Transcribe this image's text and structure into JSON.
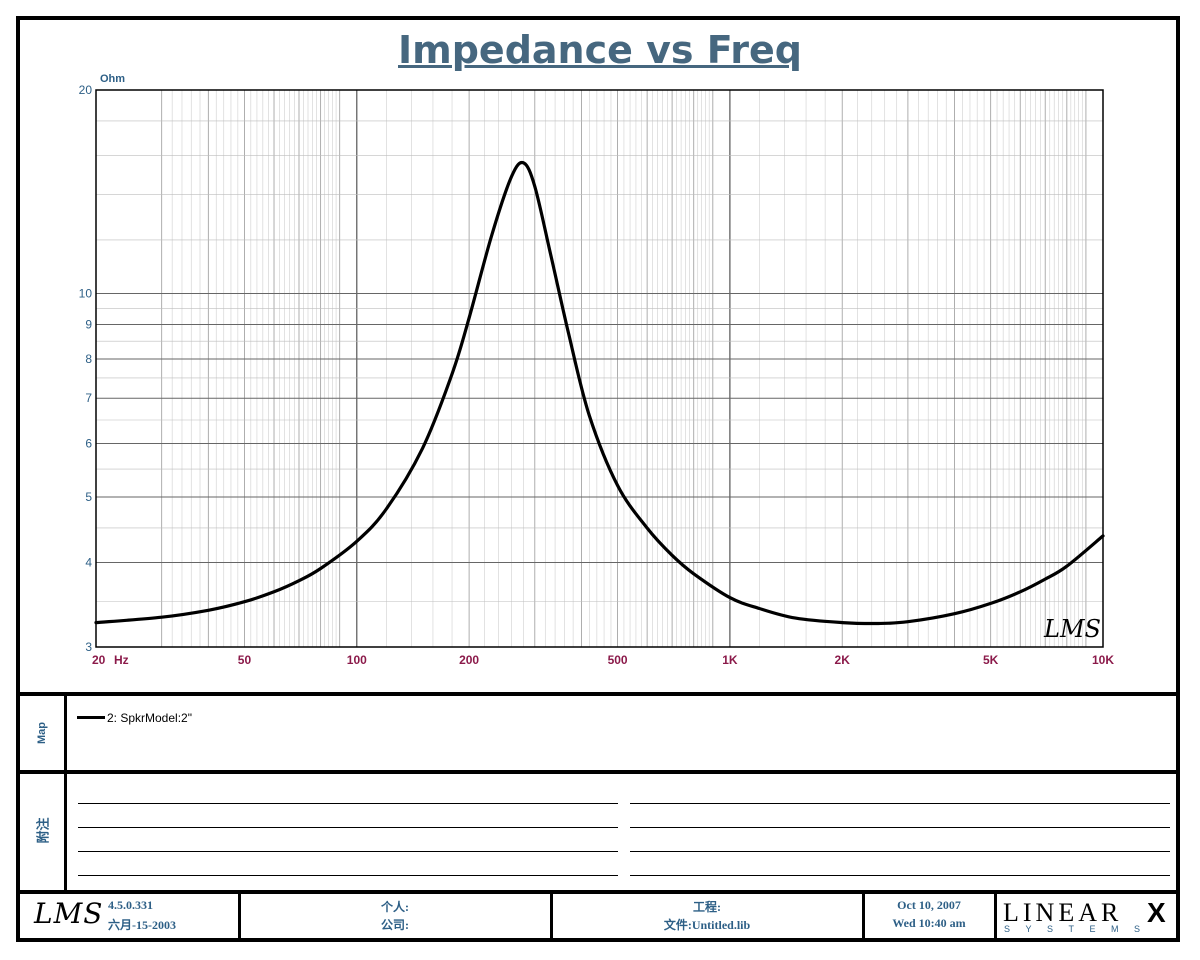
{
  "chart_data": {
    "type": "line",
    "title": "Impedance vs Freq",
    "ylabel": "Ohm",
    "xlabel": "Hz",
    "x_scale": "log",
    "y_scale": "log",
    "xlim": [
      20,
      10000
    ],
    "ylim": [
      3,
      20
    ],
    "grid": true,
    "x_ticks": [
      {
        "v": 20,
        "label": "20"
      },
      {
        "v": 50,
        "label": "50"
      },
      {
        "v": 100,
        "label": "100"
      },
      {
        "v": 200,
        "label": "200"
      },
      {
        "v": 500,
        "label": "500"
      },
      {
        "v": 1000,
        "label": "1K"
      },
      {
        "v": 2000,
        "label": "2K"
      },
      {
        "v": 5000,
        "label": "5K"
      },
      {
        "v": 10000,
        "label": "10K"
      }
    ],
    "y_ticks": [
      3,
      4,
      5,
      6,
      7,
      8,
      9,
      10,
      20
    ],
    "series": [
      {
        "name": "2: SpkrModel:2\"",
        "x": [
          20,
          30,
          40,
          50,
          60,
          70,
          80,
          100,
          120,
          150,
          180,
          200,
          230,
          260,
          280,
          300,
          330,
          370,
          420,
          500,
          600,
          700,
          800,
          1000,
          1200,
          1500,
          2000,
          2500,
          3000,
          4000,
          5000,
          6000,
          7000,
          8000,
          10000
        ],
        "y": [
          3.26,
          3.32,
          3.4,
          3.5,
          3.62,
          3.76,
          3.92,
          4.3,
          4.8,
          5.9,
          7.6,
          9.2,
          12.2,
          14.9,
          15.6,
          14.4,
          11.5,
          8.7,
          6.6,
          5.2,
          4.5,
          4.1,
          3.85,
          3.55,
          3.42,
          3.31,
          3.26,
          3.25,
          3.27,
          3.36,
          3.48,
          3.62,
          3.78,
          3.95,
          4.38
        ]
      }
    ],
    "watermark": "LMS"
  },
  "legend": {
    "section_label": "Map",
    "entry": "2: SpkrModel:2\""
  },
  "notes": {
    "section_label": "附注"
  },
  "footer": {
    "logo": "LMS",
    "version": "4.5.0.331",
    "build_date": "六月-15-2003",
    "person_label": "个人:",
    "company_label": "公司:",
    "project_label": "工程:",
    "file_label": "文件:Untitled.lib",
    "date": "Oct 10, 2007",
    "time": "Wed 10:40 am",
    "brand": "LINEAR",
    "brand_x": "X",
    "brand_sub": "SYSTEMS"
  },
  "colors": {
    "title": "#46677f",
    "axis_label": "#2d5f86",
    "x_tick_label": "#8b1a4a",
    "grid": "#9a9a9a",
    "curve": "#000000"
  }
}
